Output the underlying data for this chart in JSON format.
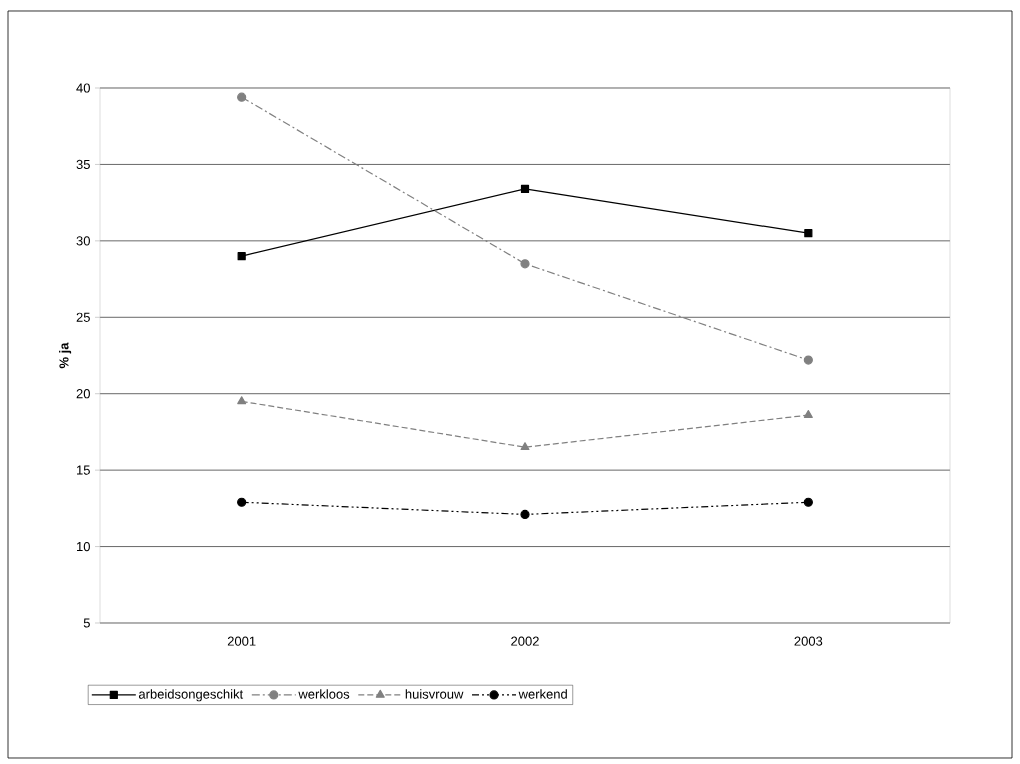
{
  "chart_data": {
    "type": "line",
    "ylabel": "% ja",
    "categories": [
      "2001",
      "2002",
      "2003"
    ],
    "series": [
      {
        "name": "arbeidsongeschikt",
        "color": "#000000",
        "marker": "square",
        "line_style": "solid",
        "values": [
          29.0,
          33.4,
          30.5
        ]
      },
      {
        "name": "werkloos",
        "color": "#808080",
        "marker": "circle",
        "line_style": "dashdot",
        "values": [
          39.4,
          28.5,
          22.2
        ]
      },
      {
        "name": "huisvrouw",
        "color": "#808080",
        "marker": "triangle",
        "line_style": "dashed",
        "values": [
          19.5,
          16.5,
          18.6
        ]
      },
      {
        "name": "werkend",
        "color": "#000000",
        "marker": "circle",
        "line_style": "dashdotdot",
        "values": [
          12.9,
          12.1,
          12.9
        ]
      }
    ],
    "ylim": [
      5,
      40
    ],
    "yticks": [
      5,
      10,
      15,
      20,
      25,
      30,
      35,
      40
    ],
    "grid": "y",
    "legend": "bottom"
  }
}
